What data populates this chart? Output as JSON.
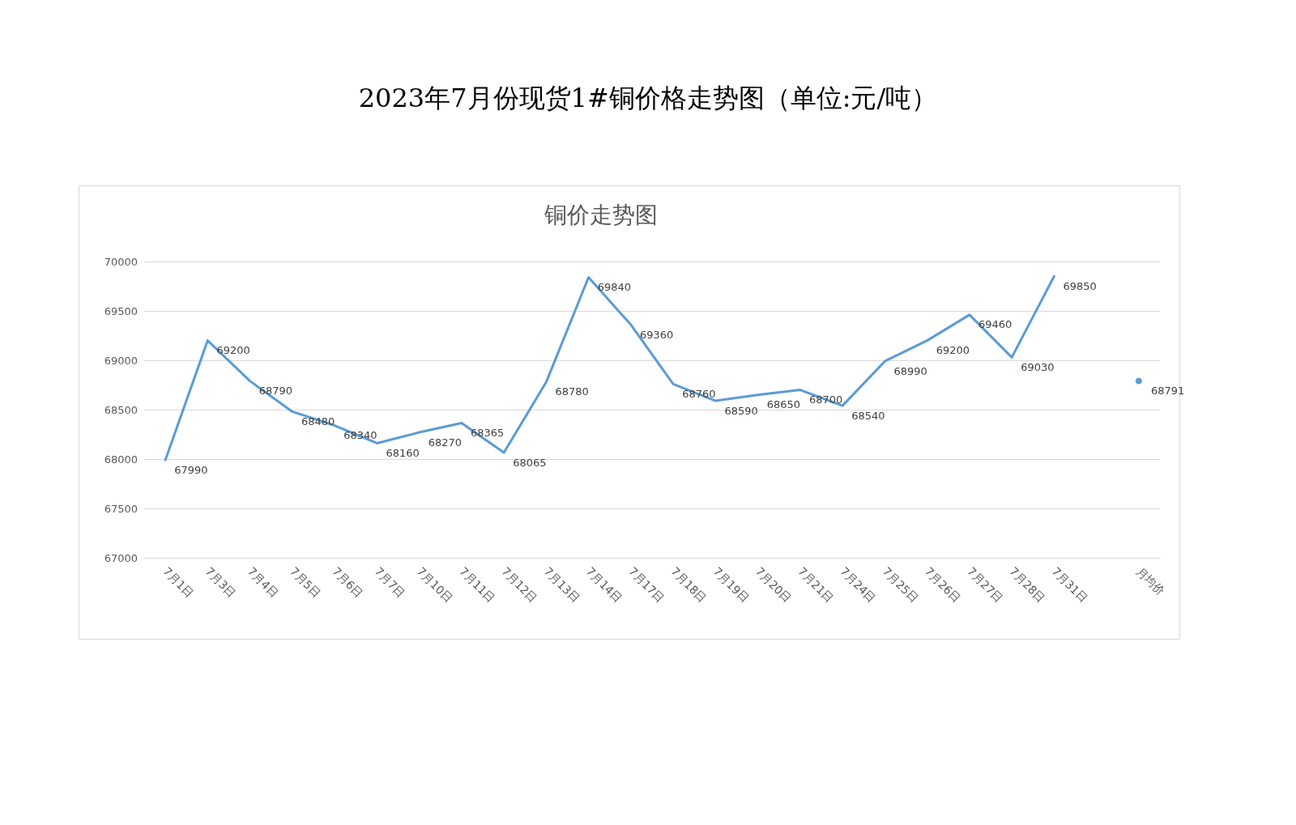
{
  "chart_data": {
    "type": "line",
    "title": "2023年7月份现货1#铜价格走势图（单位:元/吨）",
    "subtitle": "铜价走势图",
    "categories": [
      "7月1日",
      "7月3日",
      "7月4日",
      "7月5日",
      "7月6日",
      "7月7日",
      "7月10日",
      "7月11日",
      "7月12日",
      "7月13日",
      "7月14日",
      "7月17日",
      "7月18日",
      "7月19日",
      "7月20日",
      "7月21日",
      "7月24日",
      "7月25日",
      "7月26日",
      "7月27日",
      "7月28日",
      "7月31日",
      null,
      "月均价"
    ],
    "values": [
      67990,
      69200,
      68790,
      68480,
      68340,
      68160,
      68270,
      68365,
      68065,
      68780,
      69840,
      69360,
      68760,
      68590,
      68650,
      68700,
      68540,
      68990,
      69200,
      69460,
      69030,
      69850,
      null,
      68791
    ],
    "color": "#5b9bd5",
    "ylim": [
      67000,
      70000
    ],
    "yticks": [
      67000,
      67500,
      68000,
      68500,
      69000,
      69500,
      70000
    ],
    "grid": "y",
    "marker": "none",
    "line_style": "solid",
    "data_labels": true
  }
}
